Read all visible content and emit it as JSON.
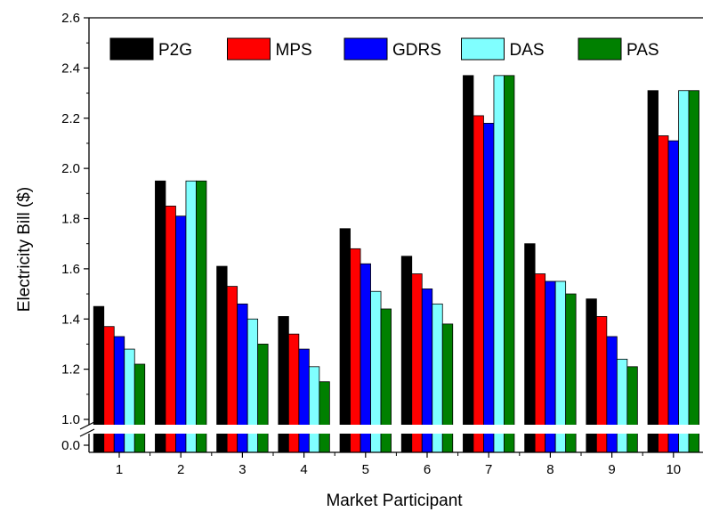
{
  "chart_data": {
    "type": "bar",
    "title": "",
    "xlabel": "Market Participant",
    "ylabel": "Electricity Bill ($)",
    "categories": [
      "1",
      "2",
      "3",
      "4",
      "5",
      "6",
      "7",
      "8",
      "9",
      "10"
    ],
    "y_axis_break": [
      0.0,
      1.0
    ],
    "ylim": [
      1.0,
      2.6
    ],
    "yticks": [
      "0.0",
      "1.0",
      "1.2",
      "1.4",
      "1.6",
      "1.8",
      "2.0",
      "2.2",
      "2.4",
      "2.6"
    ],
    "legend_position": "top",
    "grid": false,
    "series": [
      {
        "name": "P2G",
        "color": "#000000",
        "values": [
          1.45,
          1.95,
          1.61,
          1.41,
          1.76,
          1.65,
          2.37,
          1.7,
          1.48,
          2.31
        ]
      },
      {
        "name": "MPS",
        "color": "#ff0000",
        "values": [
          1.37,
          1.85,
          1.53,
          1.34,
          1.68,
          1.58,
          2.21,
          1.58,
          1.41,
          2.13
        ]
      },
      {
        "name": "GDRS",
        "color": "#0000ff",
        "values": [
          1.33,
          1.81,
          1.46,
          1.28,
          1.62,
          1.52,
          2.18,
          1.55,
          1.33,
          2.11
        ]
      },
      {
        "name": "DAS",
        "color": "#80ffff",
        "values": [
          1.28,
          1.95,
          1.4,
          1.21,
          1.51,
          1.46,
          2.37,
          1.55,
          1.24,
          2.31
        ]
      },
      {
        "name": "PAS",
        "color": "#008000",
        "values": [
          1.22,
          1.95,
          1.3,
          1.15,
          1.44,
          1.38,
          2.37,
          1.5,
          1.21,
          2.31
        ]
      }
    ]
  }
}
